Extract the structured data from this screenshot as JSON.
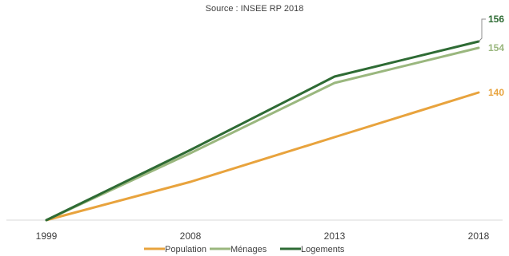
{
  "chart_data": {
    "type": "line",
    "source": "Source : INSEE RP 2018",
    "categories": [
      "1999",
      "2008",
      "2013",
      "2018"
    ],
    "series": [
      {
        "name": "Population",
        "color": "#e8a33d",
        "values": [
          100,
          112,
          126,
          140
        ]
      },
      {
        "name": "Ménages",
        "color": "#9ab77e",
        "values": [
          100,
          121,
          143,
          154
        ]
      },
      {
        "name": "Logements",
        "color": "#2e6b34",
        "values": [
          100,
          122,
          145,
          156
        ]
      }
    ],
    "end_labels": [
      "140",
      "154",
      "156"
    ],
    "ylim": [
      100,
      160
    ],
    "grid": false,
    "legend_position": "bottom"
  }
}
